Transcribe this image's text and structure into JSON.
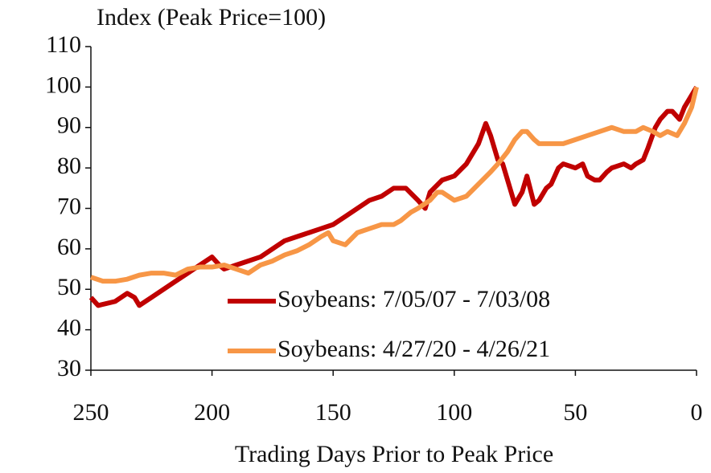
{
  "chart_data": {
    "type": "line",
    "title": "Index (Peak Price=100)",
    "x_label": "Trading Days Prior to Peak Price",
    "xlim": [
      250,
      0
    ],
    "xticks": [
      250,
      200,
      150,
      100,
      50,
      0
    ],
    "ylim": [
      30,
      110
    ],
    "yticks": [
      30,
      40,
      50,
      60,
      70,
      80,
      90,
      100,
      110
    ],
    "legend": "lower right",
    "series": [
      {
        "name": "Soybeans: 7/05/07 - 7/03/08",
        "color": "#c00000",
        "x": [
          250,
          247,
          240,
          235,
          232,
          230,
          225,
          220,
          215,
          210,
          205,
          200,
          197,
          195,
          190,
          185,
          180,
          175,
          170,
          165,
          160,
          155,
          150,
          145,
          140,
          135,
          130,
          125,
          120,
          115,
          112,
          110,
          105,
          100,
          95,
          90,
          87,
          85,
          82,
          80,
          77,
          75,
          72,
          70,
          67,
          65,
          62,
          60,
          57,
          55,
          50,
          47,
          45,
          42,
          40,
          37,
          35,
          30,
          27,
          25,
          22,
          20,
          17,
          15,
          12,
          10,
          7,
          5,
          3,
          0
        ],
        "values": [
          48,
          46,
          47,
          49,
          48,
          46,
          48,
          50,
          52,
          54,
          56,
          58,
          56,
          55,
          56,
          57,
          58,
          60,
          62,
          63,
          64,
          65,
          66,
          68,
          70,
          72,
          73,
          75,
          75,
          72,
          70,
          74,
          77,
          78,
          81,
          86,
          91,
          88,
          82,
          81,
          75,
          71,
          74,
          78,
          71,
          72,
          75,
          76,
          80,
          81,
          80,
          81,
          78,
          77,
          77,
          79,
          80,
          81,
          80,
          81,
          82,
          85,
          90,
          92,
          94,
          94,
          92,
          95,
          97,
          100
        ]
      },
      {
        "name": "Soybeans: 4/27/20 - 4/26/21",
        "color": "#f79646",
        "x": [
          250,
          245,
          240,
          235,
          230,
          225,
          220,
          215,
          210,
          205,
          200,
          195,
          190,
          185,
          180,
          175,
          170,
          165,
          160,
          155,
          152,
          150,
          145,
          140,
          135,
          130,
          125,
          122,
          118,
          115,
          110,
          107,
          105,
          100,
          95,
          90,
          85,
          82,
          78,
          75,
          72,
          70,
          67,
          65,
          60,
          55,
          50,
          45,
          40,
          35,
          30,
          25,
          22,
          18,
          15,
          12,
          8,
          5,
          2,
          0
        ],
        "values": [
          53,
          52,
          52,
          52.5,
          53.5,
          54,
          54,
          53.5,
          55,
          55.5,
          55.5,
          56,
          55,
          54,
          56,
          57,
          58.5,
          59.5,
          61,
          63,
          64,
          62,
          61,
          64,
          65,
          66,
          66,
          67,
          69,
          70,
          72,
          74,
          74,
          72,
          73,
          76,
          79,
          81,
          84,
          87,
          89,
          89,
          87,
          86,
          86,
          86,
          87,
          88,
          89,
          90,
          89,
          89,
          90,
          89,
          88,
          89,
          88,
          91,
          95,
          100
        ]
      }
    ]
  }
}
